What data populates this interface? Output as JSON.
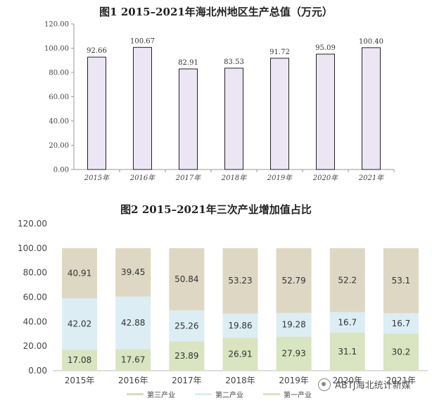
{
  "chart_data": [
    {
      "type": "bar",
      "title": "图1  2015–2021年海北州地区生产总值（万元）",
      "categories": [
        "2015年",
        "2016年",
        "2017年",
        "2018年",
        "2019年",
        "2020年",
        "2021年"
      ],
      "values": [
        92.66,
        100.67,
        82.91,
        83.53,
        91.72,
        95.09,
        100.4
      ],
      "value_labels": [
        "92.66",
        "100.67",
        "82.91",
        "83.53",
        "91.72",
        "95.09",
        "100.40"
      ],
      "ylim": [
        0,
        120
      ],
      "yticks": [
        "0.00",
        "20.00",
        "40.00",
        "60.00",
        "80.00",
        "100.00",
        "120.00"
      ],
      "bar_color": "#ece6f4",
      "grid": false
    },
    {
      "type": "bar",
      "stacked": true,
      "title": "图2   2015–2021年三次产业增加值占比",
      "categories": [
        "2015年",
        "2016年",
        "2017年",
        "2018年",
        "2019年",
        "2020年",
        "2021年"
      ],
      "ylim": [
        0,
        120
      ],
      "yticks": [
        "0.00",
        "20.00",
        "40.00",
        "60.00",
        "80.00",
        "100.00",
        "120.00"
      ],
      "series": [
        {
          "name": "第一产业",
          "color": "#d9e4c1",
          "values": [
            17.08,
            17.67,
            23.89,
            26.91,
            27.93,
            31.1,
            30.2
          ],
          "labels": [
            "17.08",
            "17.67",
            "23.89",
            "26.91",
            "27.93",
            "31.1",
            "30.2"
          ]
        },
        {
          "name": "第二产业",
          "color": "#dcedf4",
          "values": [
            42.02,
            42.88,
            25.26,
            19.86,
            19.28,
            16.7,
            16.7
          ],
          "labels": [
            "42.02",
            "42.88",
            "25.26",
            "19.86",
            "19.28",
            "16.7",
            "16.7"
          ]
        },
        {
          "name": "第三产业",
          "color": "#ddd7c4",
          "values": [
            40.91,
            39.45,
            50.84,
            53.23,
            52.79,
            52.2,
            53.1
          ],
          "labels": [
            "40.91",
            "39.45",
            "50.84",
            "53.23",
            "52.79",
            "52.2",
            "53.1"
          ]
        }
      ],
      "legend_order": [
        "第三产业",
        "第二产业",
        "第一产业"
      ],
      "legend_position": "bottom",
      "grid": false
    }
  ],
  "watermark": {
    "text": "ABTJ海北统计新媒"
  }
}
